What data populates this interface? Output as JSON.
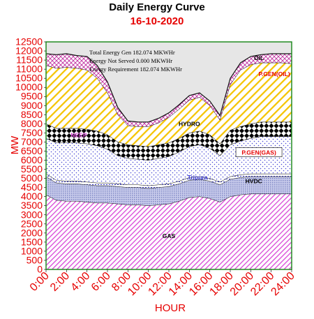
{
  "header": {
    "title": "Daily Energy Curve",
    "date": "16-10-2020"
  },
  "annotations": {
    "line1": "Total Energy Gen 182.074 MKWHr",
    "line2": "Energy Not Served  0.000 MKWHr",
    "line3": "Energy Requirement    182.074 MKWHr"
  },
  "colors": {
    "plot_background": "#e6e6e6",
    "axis_text": "#e60000",
    "frame": "#228b22",
    "gas": "#d846d8",
    "hvdc": "#8f96ce",
    "tripura": "#3a3ad0",
    "pgen_gas": "#3a3ad0",
    "neep": "#000000",
    "hydro": "#111111",
    "pgen_oil": "#f5c400",
    "oil": "#c02ea0"
  },
  "chart_data": {
    "type": "area",
    "stacked": true,
    "title": "Daily Energy Curve",
    "subtitle": "16-10-2020",
    "xlabel": "HOUR",
    "ylabel": "MW",
    "ylim": [
      0,
      12500
    ],
    "yticks": [
      0,
      500,
      1000,
      1500,
      2000,
      2500,
      3000,
      3500,
      4000,
      4500,
      5000,
      5500,
      6000,
      6500,
      7000,
      7500,
      8000,
      8500,
      9000,
      9500,
      10000,
      10500,
      11000,
      11500,
      12000,
      12500
    ],
    "xlim": [
      0,
      24
    ],
    "xticks": [
      "0:00",
      "2:00",
      "4:00",
      "6:00",
      "8:00",
      "10:00",
      "12:00",
      "14:00",
      "16:00",
      "18:00",
      "20:00",
      "22:00",
      "24:00"
    ],
    "x": [
      0,
      1,
      2,
      3,
      4,
      5,
      6,
      7,
      8,
      9,
      10,
      11,
      12,
      13,
      14,
      15,
      16,
      17,
      18,
      19,
      20,
      21,
      22,
      23,
      24
    ],
    "series": [
      {
        "name": "GAS",
        "values": [
          4100,
          3800,
          3750,
          3750,
          3700,
          3650,
          3650,
          3600,
          3550,
          3550,
          3500,
          3550,
          3600,
          3750,
          3950,
          4000,
          3900,
          3700,
          4000,
          4100,
          4150,
          4150,
          4150,
          4150,
          4150
        ]
      },
      {
        "name": "HVDC",
        "values": [
          1000,
          950,
          950,
          950,
          950,
          950,
          950,
          950,
          950,
          950,
          950,
          950,
          950,
          950,
          950,
          950,
          950,
          950,
          950,
          950,
          950,
          950,
          950,
          950,
          950
        ]
      },
      {
        "name": "Tripura",
        "values": [
          150,
          150,
          150,
          150,
          150,
          150,
          150,
          150,
          150,
          150,
          150,
          150,
          150,
          150,
          150,
          150,
          150,
          150,
          150,
          150,
          150,
          150,
          150,
          150,
          150
        ]
      },
      {
        "name": "P.GEN(GAS)",
        "values": [
          1950,
          2050,
          2100,
          2100,
          2100,
          2050,
          1850,
          1550,
          1450,
          1400,
          1400,
          1450,
          1500,
          1600,
          1700,
          1750,
          1650,
          1450,
          1750,
          1850,
          1950,
          2050,
          2050,
          2050,
          2050
        ]
      },
      {
        "name": "NEEP",
        "values": [
          800,
          800,
          800,
          800,
          800,
          800,
          800,
          750,
          750,
          750,
          750,
          750,
          750,
          750,
          750,
          750,
          750,
          650,
          800,
          800,
          800,
          800,
          800,
          800,
          800
        ]
      },
      {
        "name": "HYDRO",
        "values": [
          0,
          0,
          0,
          0,
          0,
          0,
          0,
          0,
          0,
          0,
          0,
          0,
          0,
          0,
          0,
          0,
          0,
          0,
          0,
          0,
          0,
          0,
          0,
          0,
          0
        ]
      },
      {
        "name": "P.GEN(OIL)",
        "values": [
          3200,
          3300,
          3350,
          3300,
          3250,
          2900,
          2300,
          1500,
          1050,
          1050,
          1100,
          1200,
          1400,
          1600,
          1800,
          1850,
          1600,
          1300,
          2500,
          3100,
          3250,
          3250,
          3250,
          3250,
          3200
        ]
      },
      {
        "name": "OIL",
        "values": [
          650,
          750,
          750,
          700,
          750,
          700,
          600,
          400,
          250,
          250,
          250,
          250,
          250,
          250,
          250,
          250,
          250,
          250,
          350,
          400,
          450,
          450,
          500,
          500,
          550
        ]
      }
    ],
    "series_labels": [
      "GAS",
      "HVDC",
      "Tripura",
      "P.GEN(GAS)",
      "NEEP",
      "HYDRO",
      "P.GEN(OIL)",
      "OIL"
    ],
    "grid": false,
    "legend": "none"
  }
}
